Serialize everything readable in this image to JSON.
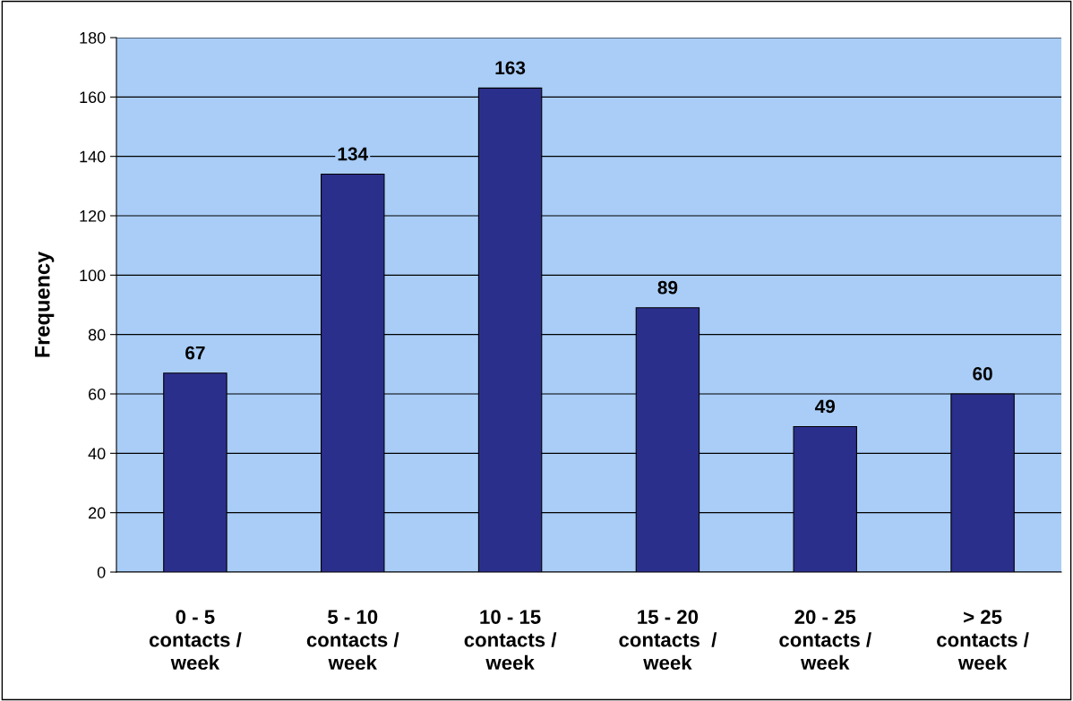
{
  "chart_data": {
    "type": "bar",
    "ylabel": "Frequency",
    "categories": [
      "0 - 5\ncontacts /\nweek",
      "5 - 10\ncontacts /\nweek",
      "10 - 15\ncontacts /\nweek",
      "15 - 20\ncontacts  /\nweek",
      "20 - 25\ncontacts /\nweek",
      "> 25\ncontacts /\nweek"
    ],
    "values": [
      67,
      134,
      163,
      89,
      49,
      60
    ],
    "color": "#2b2f8c",
    "ylim": [
      0,
      180
    ],
    "yticks": [
      0,
      20,
      40,
      60,
      80,
      100,
      120,
      140,
      160,
      180
    ],
    "grid": "y",
    "data_labels": true
  }
}
